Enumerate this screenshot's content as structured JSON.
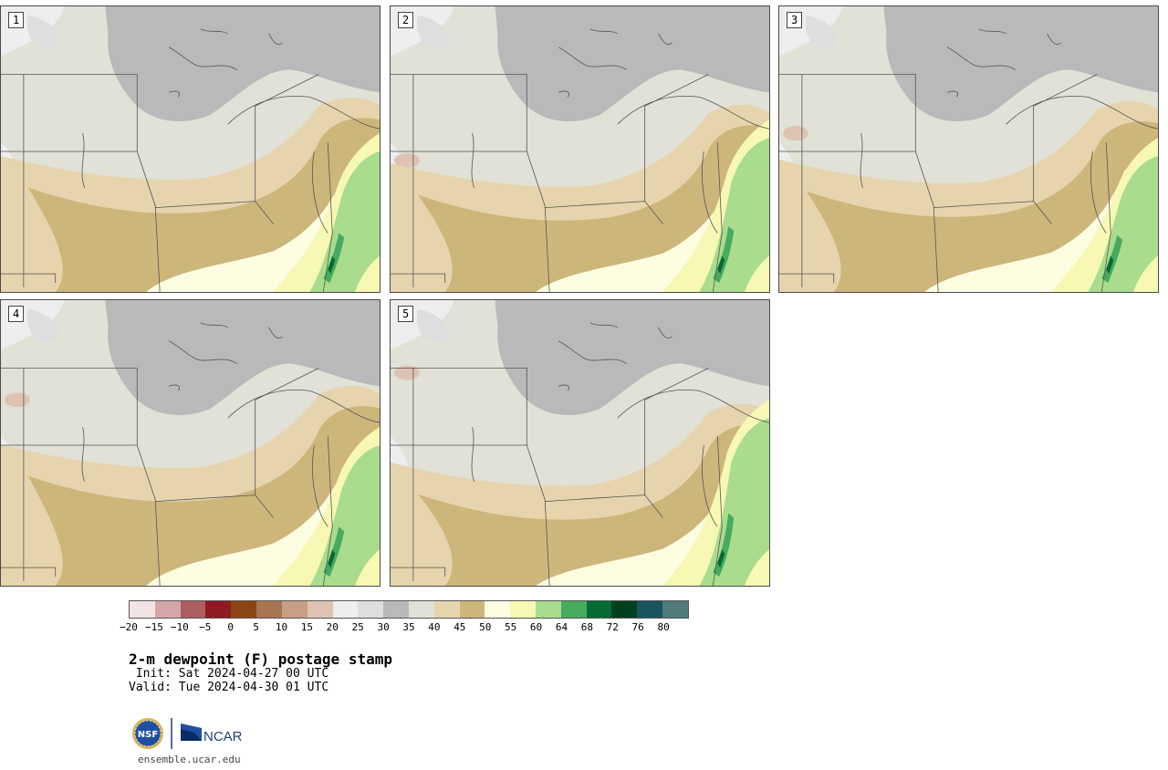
{
  "panels": [
    {
      "label": "1"
    },
    {
      "label": "2"
    },
    {
      "label": "3"
    },
    {
      "label": "4"
    },
    {
      "label": "5"
    }
  ],
  "colorbar": {
    "colors": [
      "#f2e4e4",
      "#d5a6a8",
      "#ac5e63",
      "#8e1b22",
      "#8b4513",
      "#a87552",
      "#c89f86",
      "#dfc3b2",
      "#eeeeee",
      "#dedede",
      "#b9b9b9",
      "#e1e1d7",
      "#e6d4ad",
      "#cdb67a",
      "#fdfde2",
      "#f6f8b3",
      "#a9dc8c",
      "#46aa5f",
      "#046b35",
      "#01401f",
      "#1a545f",
      "#517a7a"
    ],
    "ticks": [
      "−20",
      "−15",
      "−10",
      "−5",
      "0",
      "5",
      "10",
      "15",
      "20",
      "25",
      "30",
      "35",
      "40",
      "45",
      "50",
      "55",
      "60",
      "64",
      "68",
      "72",
      "76",
      "80"
    ]
  },
  "title": "2-m dewpoint (F) postage stamp",
  "init": " Init: Sat 2024-04-27 00 UTC",
  "valid": "Valid: Tue 2024-04-30 01 UTC",
  "logos": {
    "nsf_text": "NSF",
    "ncar_text": "NCAR"
  },
  "site": "ensemble.ucar.edu"
}
